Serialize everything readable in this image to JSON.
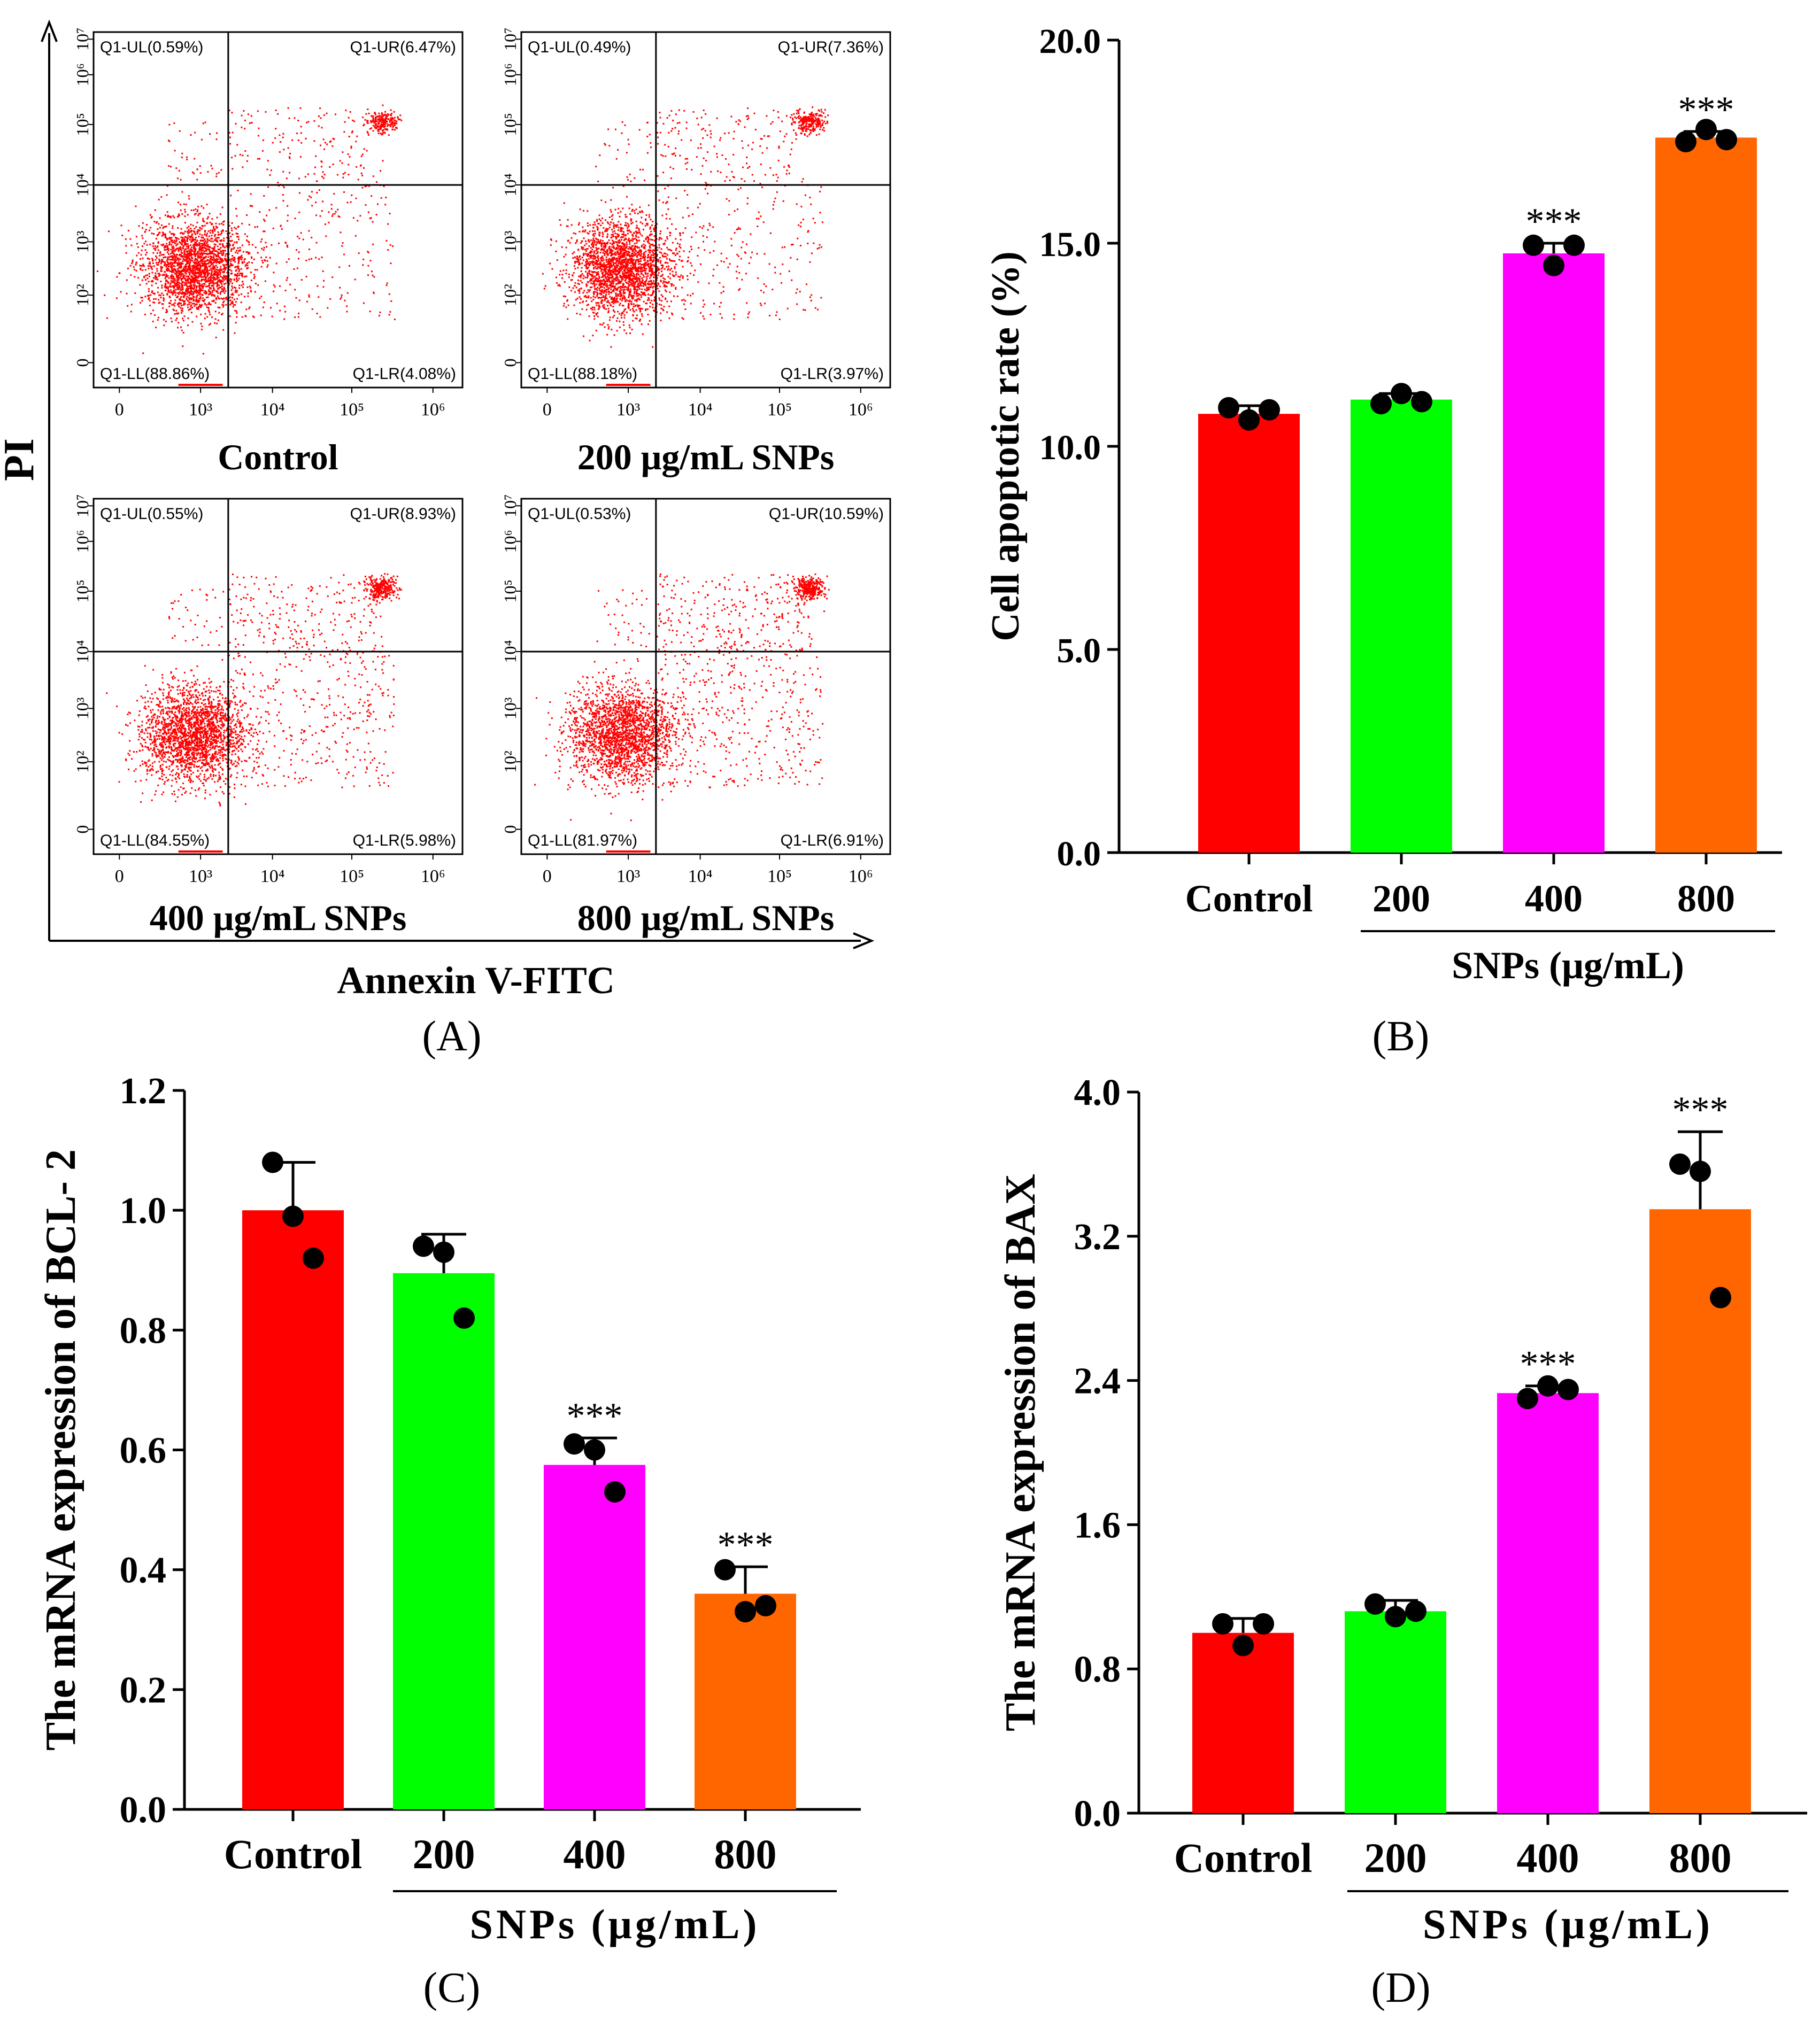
{
  "panel_labels": [
    "(A)",
    "(B)",
    "(C)",
    "(D)"
  ],
  "flow": {
    "y_axis_label": "PI",
    "x_axis_label": "Annexin V-FITC",
    "x_ticks": [
      "0",
      "10³",
      "10⁴",
      "10⁵",
      "10⁶"
    ],
    "y_ticks": [
      "0",
      "10²",
      "10³",
      "10⁴",
      "10⁵",
      "10⁶",
      "10⁷"
    ],
    "colors": {
      "dots": "#ff0000",
      "gate": "#000000"
    },
    "plots": [
      {
        "title": "Control",
        "ul": "Q1-UL(0.59%)",
        "ur": "Q1-UR(6.47%)",
        "ll": "Q1-LL(88.86%)",
        "lr": "Q1-LR(4.08%)",
        "ur_fraction": 0.0647,
        "lr_fraction": 0.0408,
        "ul_fraction": 0.0059
      },
      {
        "title": "200 μg/mL SNPs",
        "ul": "Q1-UL(0.49%)",
        "ur": "Q1-UR(7.36%)",
        "ll": "Q1-LL(88.18%)",
        "lr": "Q1-LR(3.97%)",
        "ur_fraction": 0.0736,
        "lr_fraction": 0.0397,
        "ul_fraction": 0.0049
      },
      {
        "title": "400 μg/mL SNPs",
        "ul": "Q1-UL(0.55%)",
        "ur": "Q1-UR(8.93%)",
        "ll": "Q1-LL(84.55%)",
        "lr": "Q1-LR(5.98%)",
        "ur_fraction": 0.0893,
        "lr_fraction": 0.0598,
        "ul_fraction": 0.0055
      },
      {
        "title": "800 μg/mL SNPs",
        "ul": "Q1-UL(0.53%)",
        "ur": "Q1-UR(10.59%)",
        "ll": "Q1-LL(81.97%)",
        "lr": "Q1-LR(6.91%)",
        "ur_fraction": 0.1059,
        "lr_fraction": 0.0691,
        "ul_fraction": 0.0053
      }
    ]
  },
  "chart_data": [
    {
      "panel": "B",
      "type": "bar",
      "categories": [
        "Control",
        "200",
        "400",
        "800"
      ],
      "group_label": "SNPs (μg/mL)",
      "ylabel": "Cell apoptotic rate (%)",
      "ylim": [
        0,
        20
      ],
      "yticks": [
        "0.0",
        "5.0",
        "10.0",
        "15.0",
        "20.0"
      ],
      "values": [
        10.8,
        11.15,
        14.75,
        17.6
      ],
      "errors": [
        0.2,
        0.15,
        0.25,
        0.15
      ],
      "points": [
        [
          10.95,
          10.65,
          10.9
        ],
        [
          11.05,
          11.3,
          11.1
        ],
        [
          14.95,
          14.45,
          14.95
        ],
        [
          17.5,
          17.8,
          17.55
        ]
      ],
      "significance": [
        "",
        "",
        "***",
        "***"
      ],
      "colors": [
        "#ff0000",
        "#00ff00",
        "#ff00ff",
        "#ff6600"
      ]
    },
    {
      "panel": "C",
      "type": "bar",
      "categories": [
        "Control",
        "200",
        "400",
        "800"
      ],
      "group_label": "SNPs (μg/mL)",
      "ylabel": "The mRNA expression of BCL- 2",
      "ylim": [
        0,
        1.2
      ],
      "yticks": [
        "0.0",
        "0.2",
        "0.4",
        "0.6",
        "0.8",
        "1.0",
        "1.2"
      ],
      "values": [
        1.0,
        0.895,
        0.575,
        0.36
      ],
      "errors": [
        0.08,
        0.065,
        0.045,
        0.045
      ],
      "points": [
        [
          1.08,
          0.99,
          0.92
        ],
        [
          0.94,
          0.93,
          0.82
        ],
        [
          0.61,
          0.6,
          0.53
        ],
        [
          0.4,
          0.33,
          0.34
        ]
      ],
      "significance": [
        "",
        "",
        "***",
        "***"
      ],
      "colors": [
        "#ff0000",
        "#00ff00",
        "#ff00ff",
        "#ff6600"
      ]
    },
    {
      "panel": "D",
      "type": "bar",
      "categories": [
        "Control",
        "200",
        "400",
        "800"
      ],
      "group_label": "SNPs (μg/mL)",
      "ylabel": "The mRNA expression of BAX",
      "ylim": [
        0,
        4.0
      ],
      "yticks": [
        "0.0",
        "0.8",
        "1.6",
        "2.4",
        "3.2",
        "4.0"
      ],
      "values": [
        1.0,
        1.12,
        2.33,
        3.35
      ],
      "errors": [
        0.08,
        0.06,
        0.04,
        0.43
      ],
      "points": [
        [
          1.05,
          0.93,
          1.05
        ],
        [
          1.16,
          1.09,
          1.12
        ],
        [
          2.3,
          2.37,
          2.35
        ],
        [
          3.6,
          3.56,
          2.86
        ]
      ],
      "significance": [
        "",
        "",
        "***",
        "***"
      ],
      "colors": [
        "#ff0000",
        "#00ff00",
        "#ff00ff",
        "#ff6600"
      ]
    }
  ]
}
